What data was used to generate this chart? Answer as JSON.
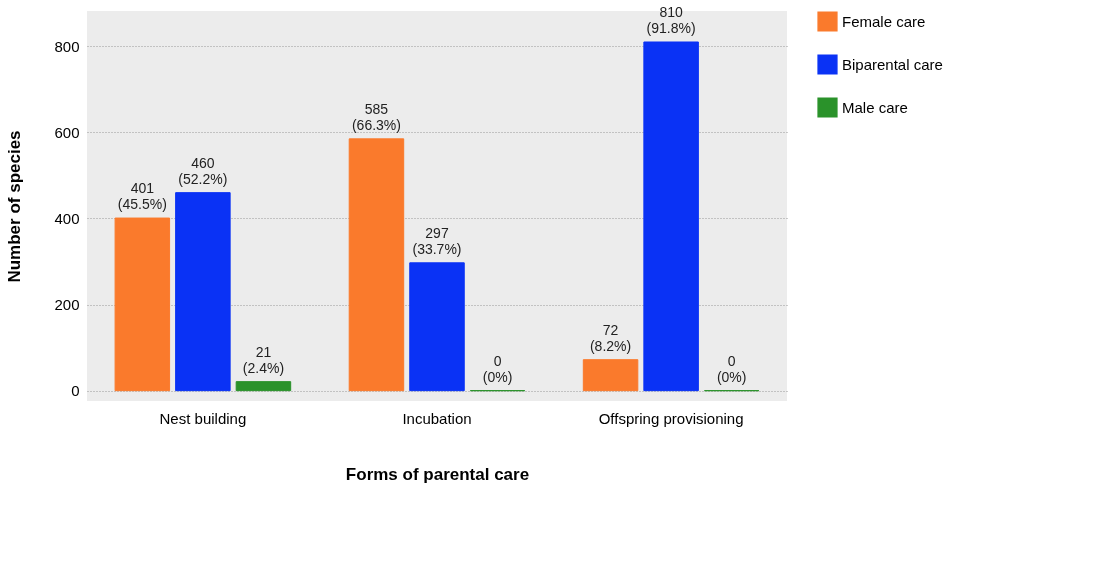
{
  "chart_data": {
    "type": "bar",
    "xlabel": "Forms of parental care",
    "ylabel": "Number of species",
    "categories": [
      "Nest building",
      "Incubation",
      "Offspring provisioning"
    ],
    "series": [
      {
        "name": "Female care",
        "color": "#fa7a2c",
        "values": [
          401,
          585,
          72
        ],
        "value_labels": [
          "401\n(45.5%)",
          "585\n(66.3%)",
          "72\n(8.2%)"
        ]
      },
      {
        "name": "Biparental care",
        "color": "#0a32f5",
        "values": [
          460,
          297,
          810
        ],
        "value_labels": [
          "460\n(52.2%)",
          "297\n(33.7%)",
          "810\n(91.8%)"
        ]
      },
      {
        "name": "Male care",
        "color": "#2a922a",
        "values": [
          21,
          0,
          0
        ],
        "value_labels": [
          "21\n(2.4%)",
          "0\n(0%)",
          "0\n(0%)"
        ]
      }
    ],
    "ylim": [
      -24,
      882
    ],
    "yticks": [
      0,
      200,
      400,
      600,
      800
    ],
    "grid": "y",
    "legend": "right"
  }
}
